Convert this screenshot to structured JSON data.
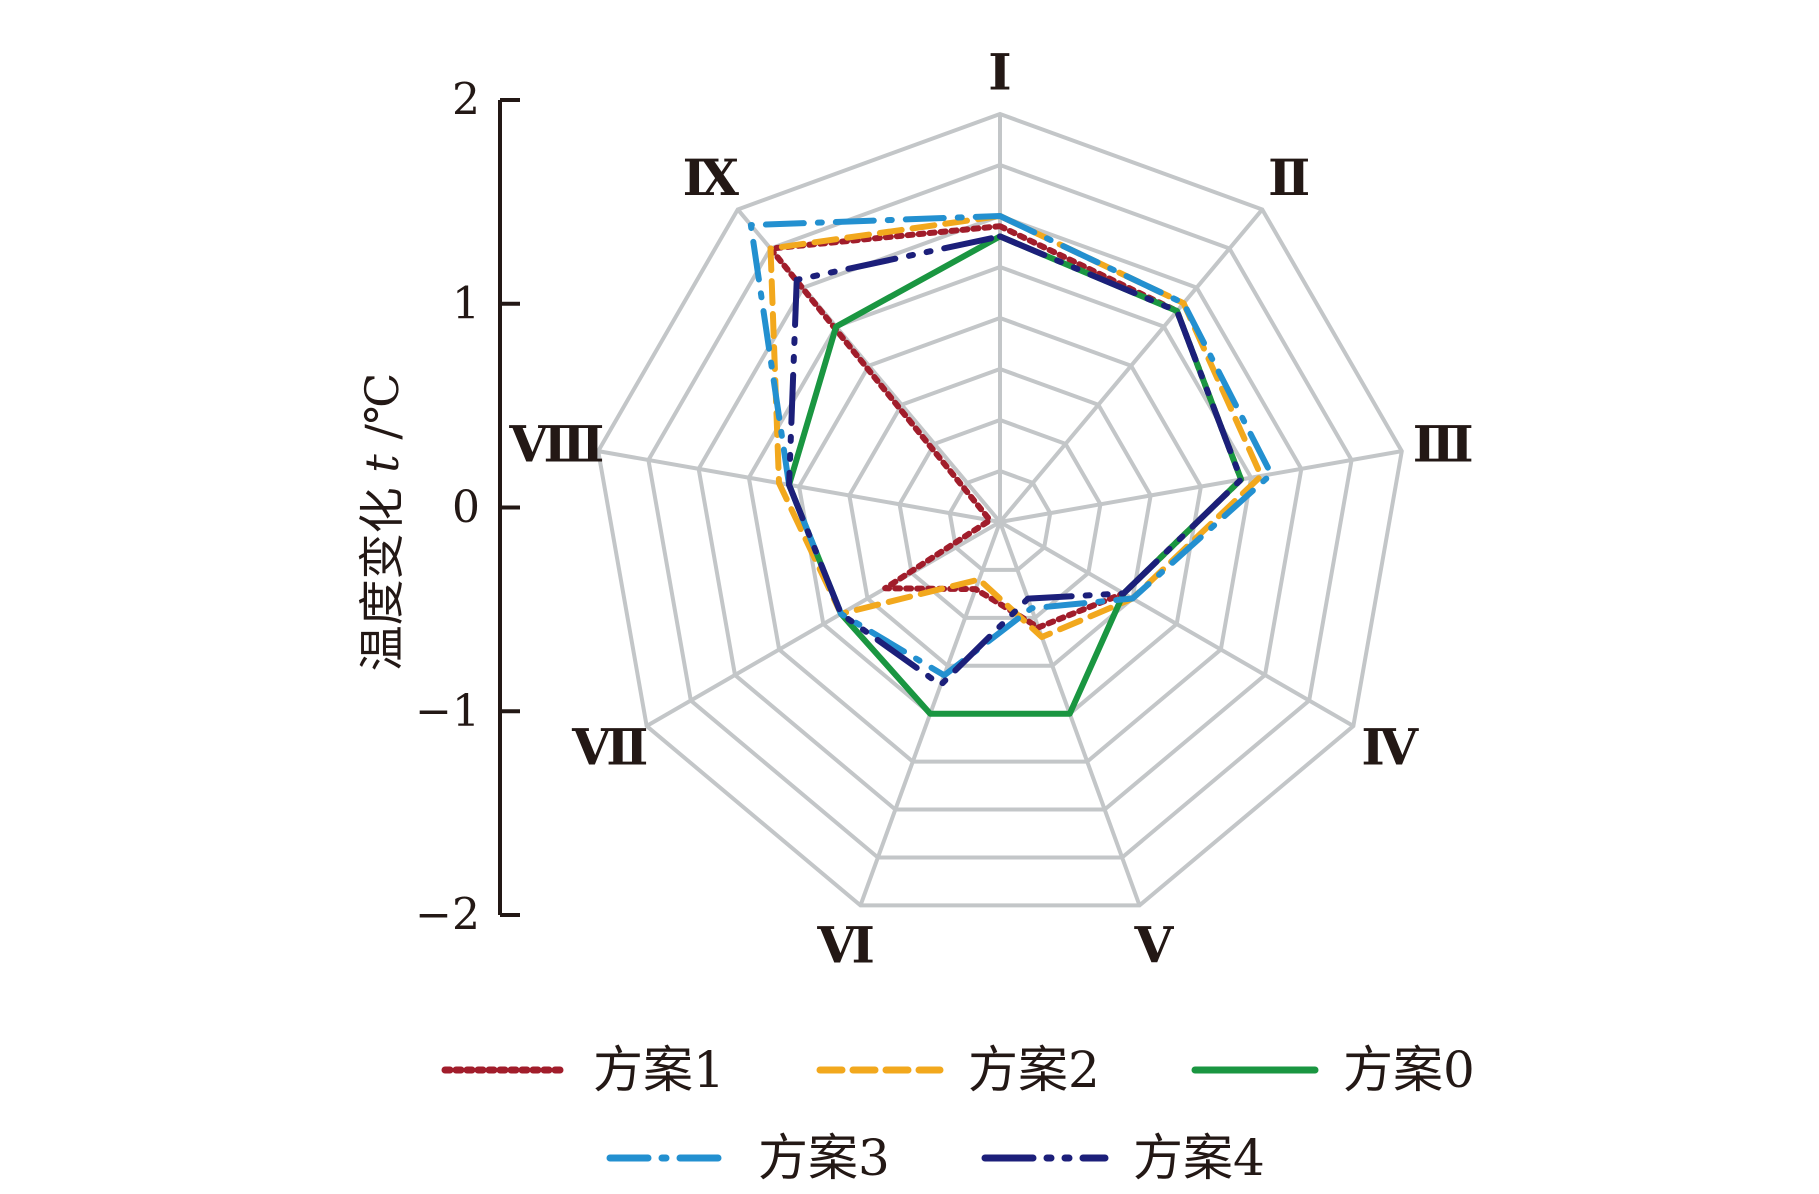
{
  "chart_data": {
    "type": "radar",
    "ylabel": "温度变化 t /℃",
    "ylabel_parts": {
      "main": "温度变化 ",
      "italic": "t",
      "unit": " /℃"
    },
    "ylim": [
      -2,
      2
    ],
    "y_ticks": [
      {
        "value": 2,
        "label": "2"
      },
      {
        "value": 1,
        "label": "1"
      },
      {
        "value": 0,
        "label": "0"
      },
      {
        "value": -1,
        "label": "−1"
      },
      {
        "value": -2,
        "label": "−2"
      }
    ],
    "grid_levels": [
      -2,
      -1.5,
      -1,
      -0.5,
      0,
      0.5,
      1,
      1.5,
      2
    ],
    "categories": [
      "Ⅰ",
      "Ⅱ",
      "Ⅲ",
      "Ⅳ",
      "Ⅴ",
      "Ⅵ",
      "Ⅶ",
      "Ⅷ",
      "Ⅸ"
    ],
    "grid": true,
    "legend_position": "bottom",
    "series": [
      {
        "name": "方案1",
        "color": "#a11d2b",
        "style": "dotted",
        "values": [
          0.9,
          0.7,
          0.4,
          -0.6,
          -0.9,
          -1.3,
          -0.7,
          -1.9,
          1.5
        ]
      },
      {
        "name": "方案2",
        "color": "#f2a81d",
        "style": "dashed",
        "values": [
          1.0,
          0.8,
          0.6,
          -0.5,
          -0.8,
          -1.4,
          -0.2,
          0.2,
          1.5
        ]
      },
      {
        "name": "方案0",
        "color": "#1a9641",
        "style": "solid",
        "values": [
          0.8,
          0.7,
          0.4,
          -0.6,
          0.0,
          0.0,
          -0.2,
          0.1,
          0.5
        ]
      },
      {
        "name": "方案3",
        "color": "#2390d0",
        "style": "dashdot",
        "values": [
          1.0,
          0.8,
          0.7,
          -0.5,
          -1.1,
          -0.4,
          -0.2,
          0.1,
          1.8
        ]
      },
      {
        "name": "方案4",
        "color": "#1c1f7a",
        "style": "dashdotlong",
        "values": [
          0.8,
          0.7,
          0.4,
          -0.6,
          -1.2,
          -0.3,
          -0.2,
          0.1,
          1.1
        ]
      }
    ]
  }
}
